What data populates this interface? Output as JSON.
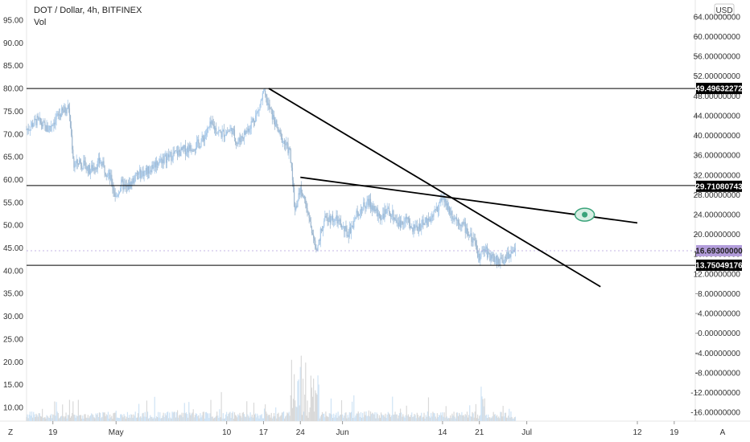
{
  "header": {
    "title": "DOT / Dollar, 4h, BITFINEX",
    "subtitle": "Vol",
    "currency": "USD"
  },
  "footer": {
    "left_label": "Z",
    "right_label": "A"
  },
  "chart_data": {
    "type": "candlestick",
    "left_axis": {
      "ticks": [
        "95.00",
        "90.00",
        "85.00",
        "80.00",
        "75.00",
        "70.00",
        "65.00",
        "60.00",
        "55.00",
        "50.00",
        "45.00",
        "40.00",
        "35.00",
        "30.00",
        "25.00",
        "20.00",
        "15.00",
        "10.00"
      ],
      "ylim": [
        7,
        98
      ]
    },
    "right_axis": {
      "ticks": [
        "64.00000000",
        "60.00000000",
        "56.00000000",
        "52.00000000",
        "48.00000000",
        "44.00000000",
        "40.00000000",
        "36.00000000",
        "32.00000000",
        "28.00000000",
        "24.00000000",
        "20.00000000",
        "16.00000000",
        "12.00000000",
        "8.00000000",
        "4.00000000",
        "0.00000000",
        "-4.00000000",
        "-8.00000000",
        "-12.00000000",
        "-16.00000000"
      ],
      "tick_values": [
        64,
        60,
        56,
        52,
        48,
        44,
        40,
        36,
        32,
        28,
        24,
        20,
        16,
        12,
        8,
        4,
        0,
        -4,
        -8,
        -12,
        -16
      ]
    },
    "x_axis": {
      "ticks": [
        "19",
        "May",
        "10",
        "17",
        "24",
        "Jun",
        "14",
        "21",
        "Jul",
        "12",
        "19"
      ],
      "tick_days": [
        0,
        12,
        33,
        40,
        47,
        55,
        74,
        81,
        90,
        111,
        118
      ],
      "xlim": [
        -5,
        122
      ]
    },
    "price_tags": [
      {
        "value": 49.49632272,
        "label": "49.49632272",
        "color": "#000000"
      },
      {
        "value": 29.71080743,
        "label": "29.71080743",
        "color": "#000000"
      },
      {
        "value": 16.693,
        "label": "16.69300000",
        "color": "#b39ddb"
      },
      {
        "value": 13.75049176,
        "label": "13.75049176",
        "color": "#000000"
      }
    ],
    "horizontal_lines": [
      80.0,
      58.7,
      41.2
    ],
    "trend_lines": [
      {
        "from": [
          41,
          80.0
        ],
        "to": [
          104,
          36.5
        ]
      },
      {
        "from": [
          47,
          60.5
        ],
        "to": [
          111,
          50.5
        ]
      }
    ],
    "price_path": [
      [
        -5,
        71
      ],
      [
        -3,
        73
      ],
      [
        -1,
        71
      ],
      [
        1,
        74
      ],
      [
        3,
        76
      ],
      [
        4,
        63
      ],
      [
        5,
        64
      ],
      [
        7,
        62
      ],
      [
        9,
        64
      ],
      [
        11,
        60
      ],
      [
        12,
        56
      ],
      [
        13,
        59
      ],
      [
        14,
        58
      ],
      [
        16,
        61
      ],
      [
        18,
        62
      ],
      [
        20,
        64
      ],
      [
        22,
        65
      ],
      [
        24,
        66
      ],
      [
        26,
        67
      ],
      [
        28,
        68
      ],
      [
        30,
        72
      ],
      [
        32,
        70
      ],
      [
        34,
        71
      ],
      [
        35,
        68
      ],
      [
        37,
        71
      ],
      [
        39,
        75
      ],
      [
        40,
        79
      ],
      [
        41,
        76
      ],
      [
        43,
        70
      ],
      [
        45,
        66
      ],
      [
        46,
        53
      ],
      [
        47,
        58
      ],
      [
        48,
        55
      ],
      [
        49,
        50
      ],
      [
        50,
        44
      ],
      [
        51,
        49
      ],
      [
        52,
        52
      ],
      [
        54,
        51
      ],
      [
        56,
        48
      ],
      [
        58,
        53
      ],
      [
        60,
        55
      ],
      [
        62,
        52
      ],
      [
        64,
        53
      ],
      [
        66,
        50
      ],
      [
        67,
        52
      ],
      [
        68,
        49
      ],
      [
        70,
        50
      ],
      [
        72,
        52
      ],
      [
        74,
        56
      ],
      [
        76,
        52
      ],
      [
        78,
        50
      ],
      [
        80,
        46
      ],
      [
        81,
        43
      ],
      [
        82,
        45
      ],
      [
        83,
        43
      ],
      [
        85,
        42
      ],
      [
        86,
        43
      ],
      [
        87,
        44
      ],
      [
        88,
        45
      ]
    ],
    "annotation": {
      "type": "eye",
      "day": 101,
      "value": 52.3
    }
  }
}
